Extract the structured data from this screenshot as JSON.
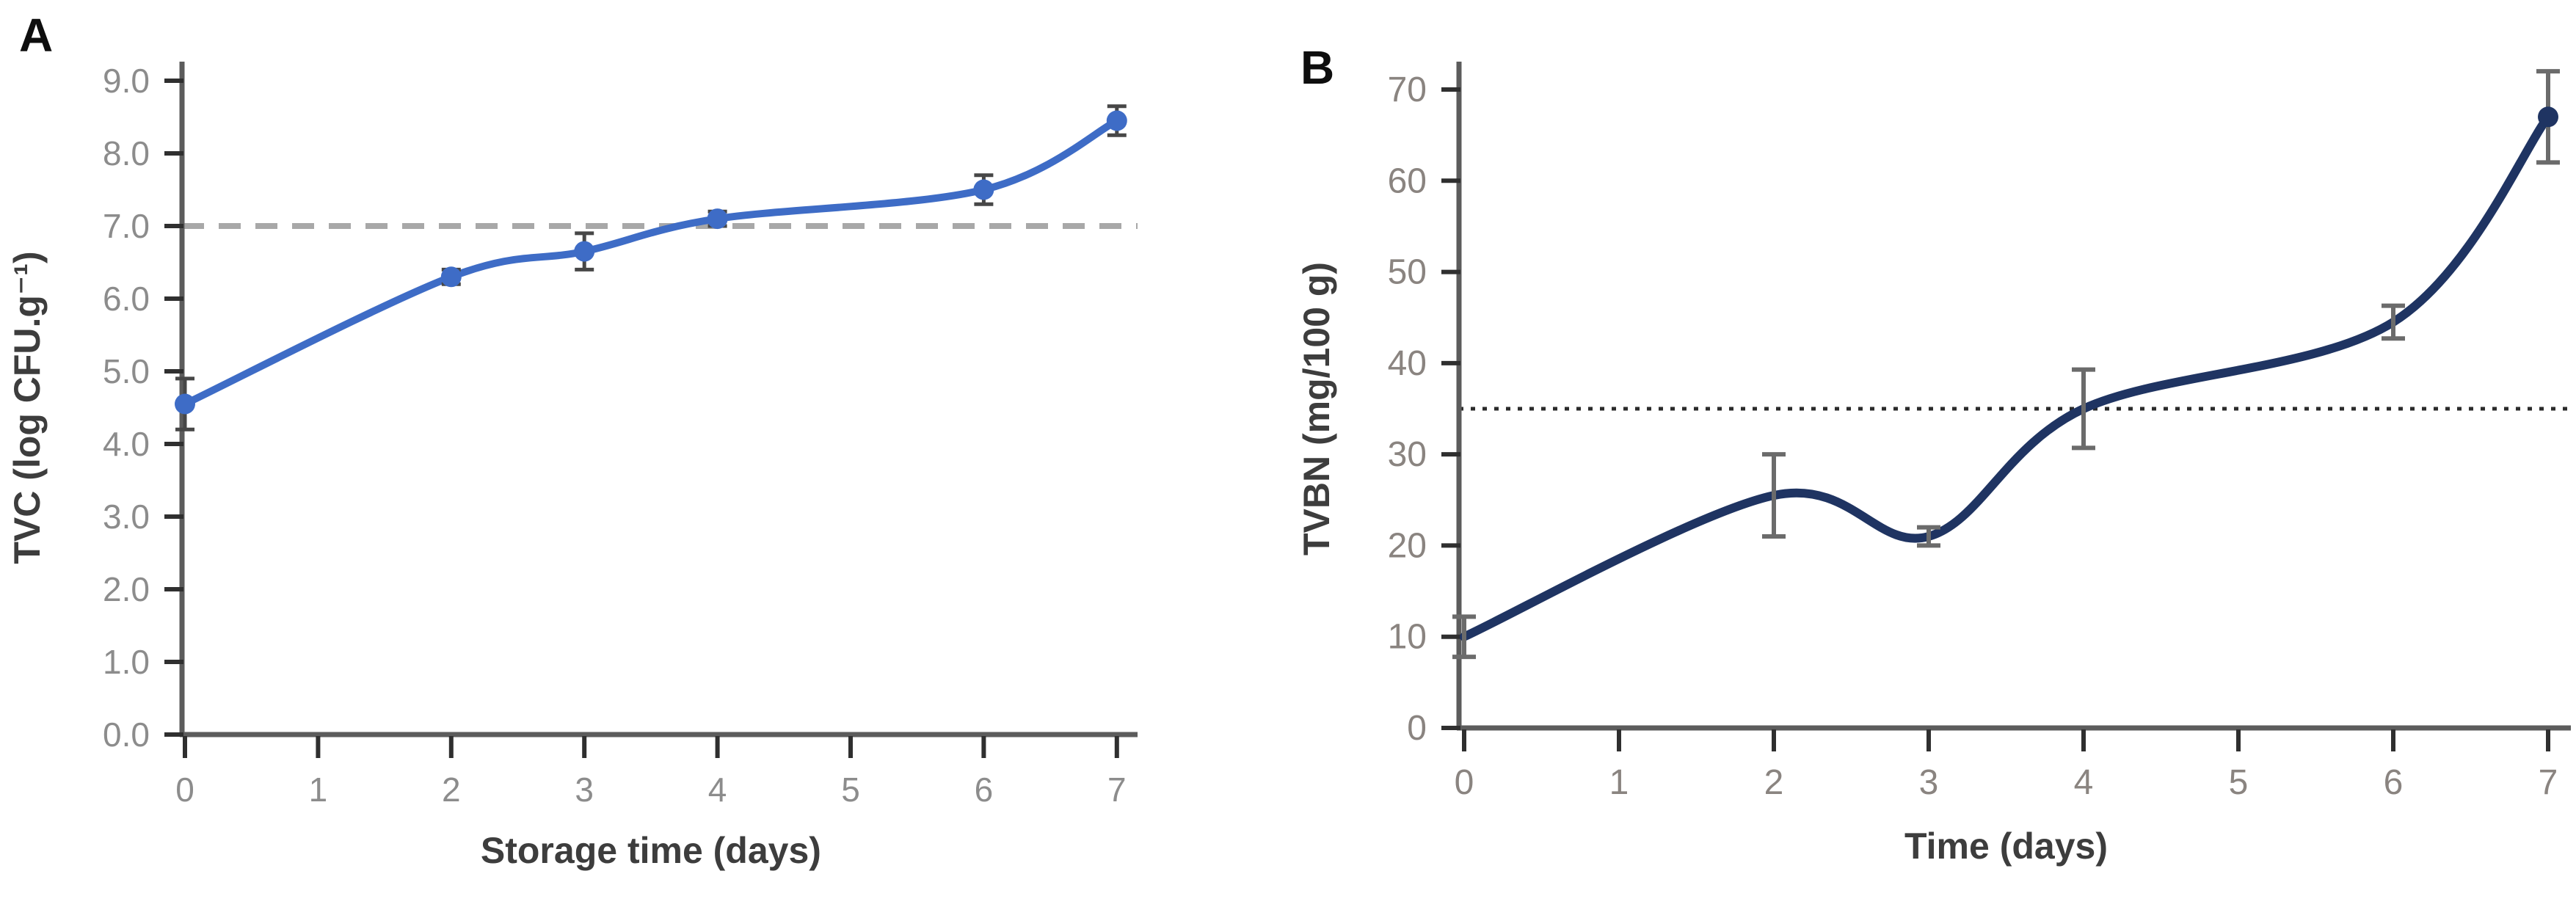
{
  "chart_data": [
    {
      "panel_label": "A",
      "type": "line",
      "x": [
        0,
        2,
        3,
        4,
        6,
        7
      ],
      "xticks": [
        "0",
        "1",
        "2",
        "3",
        "4",
        "5",
        "6",
        "7"
      ],
      "yticks": [
        "0.0",
        "1.0",
        "2.0",
        "3.0",
        "4.0",
        "5.0",
        "6.0",
        "7.0",
        "8.0",
        "9.0"
      ],
      "xlim": [
        0,
        7
      ],
      "ylim": [
        0,
        9
      ],
      "xlabel": "Storage time (days)",
      "ylabel": "TVC (log CFU.g⁻¹)",
      "grid": false,
      "legend": "none",
      "series": [
        {
          "name": "TVC",
          "values": [
            4.55,
            6.3,
            6.65,
            7.1,
            7.5,
            8.45
          ],
          "errors": [
            0.35,
            0.1,
            0.25,
            0.1,
            0.2,
            0.2
          ],
          "color": "#3e6cc6",
          "marker": "circle",
          "smooth": true
        }
      ],
      "threshold_line": {
        "value": 7.0,
        "style": "dashed",
        "color": "#a8a8a8"
      }
    },
    {
      "panel_label": "B",
      "type": "line",
      "x": [
        0,
        2,
        3,
        4,
        6,
        7
      ],
      "xticks": [
        "0",
        "1",
        "2",
        "3",
        "4",
        "5",
        "6",
        "7"
      ],
      "yticks": [
        "0",
        "10",
        "20",
        "30",
        "40",
        "50",
        "60",
        "70"
      ],
      "xlim": [
        0,
        7
      ],
      "ylim": [
        0,
        70
      ],
      "xlabel": "Time (days)",
      "ylabel": "TVBN  (mg/100 g)",
      "grid": false,
      "legend": "none",
      "series": [
        {
          "name": "TVBN",
          "values": [
            10,
            25.5,
            21,
            35,
            44.5,
            67
          ],
          "errors": [
            2.2,
            4.5,
            1,
            4.3,
            1.8,
            5
          ],
          "color": "#1f3462",
          "marker": "end-dot",
          "smooth": true
        }
      ],
      "threshold_line": {
        "value": 35,
        "style": "dotted",
        "color": "#2b2b2b"
      }
    }
  ]
}
